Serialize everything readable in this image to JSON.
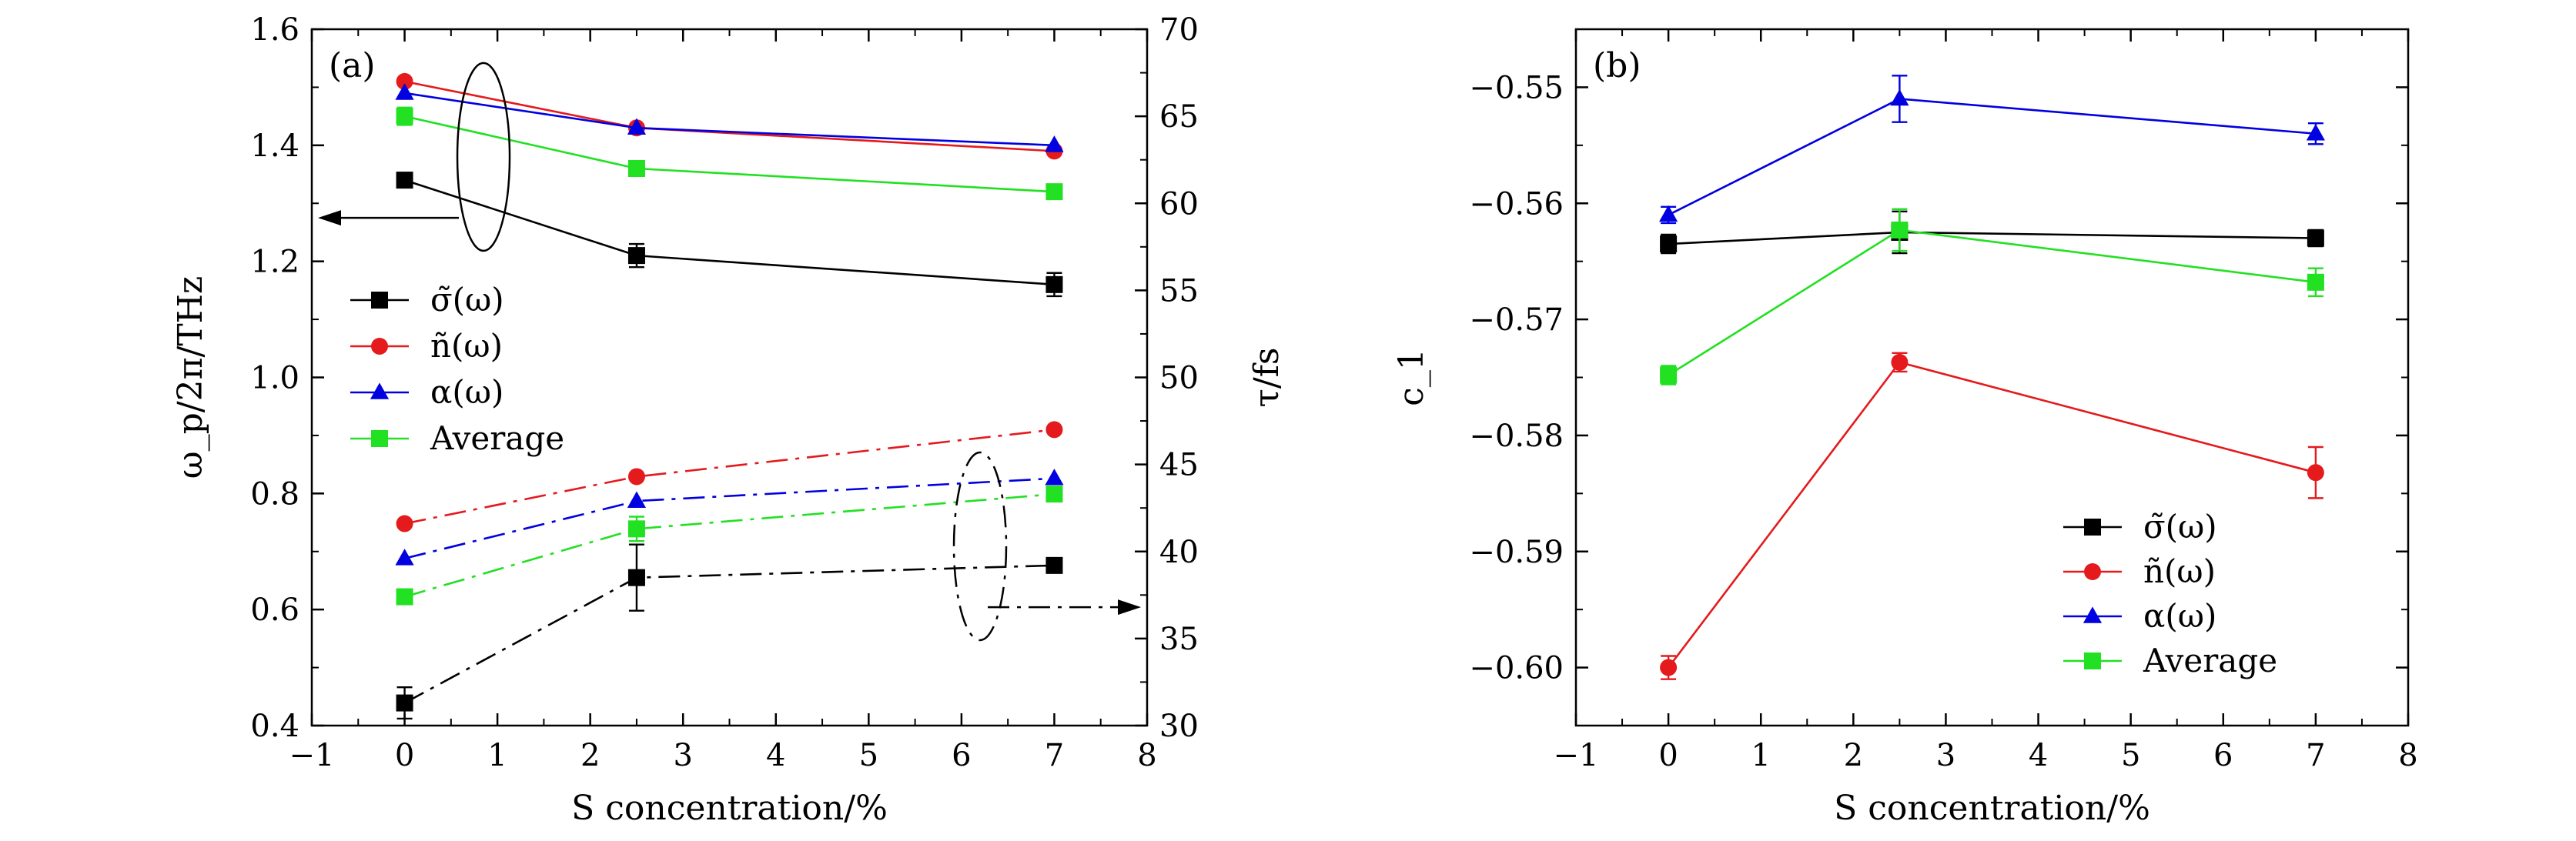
{
  "chart_data": [
    {
      "panel_label": "(a)",
      "type": "line",
      "xlabel": "S concentration/%",
      "ylabel": "ω_p/2π/THz",
      "y2label": "τ/fs",
      "xlim": [
        -1,
        8
      ],
      "ylim": [
        0.4,
        1.6
      ],
      "y2lim": [
        30,
        70
      ],
      "xticks": [
        "−1",
        "0",
        "1",
        "2",
        "3",
        "4",
        "5",
        "6",
        "7",
        "8"
      ],
      "yticks": [
        "0.4",
        "0.6",
        "0.8",
        "1.0",
        "1.2",
        "1.4",
        "1.6"
      ],
      "y2ticks": [
        "30",
        "35",
        "40",
        "45",
        "50",
        "55",
        "60",
        "65",
        "70"
      ],
      "x": [
        0,
        2.5,
        7
      ],
      "legend": {
        "placement": "middle-left",
        "entries": [
          {
            "text": "σ̃(ω)",
            "color": "#000000",
            "marker": "square"
          },
          {
            "text": "ñ(ω)",
            "color": "#e41a1c",
            "marker": "circle"
          },
          {
            "text": "α(ω)",
            "color": "#0000e0",
            "marker": "triangle"
          },
          {
            "text": "Average",
            "color": "#22e022",
            "marker": "square"
          }
        ]
      },
      "series": [
        {
          "axis": "left",
          "style": "solid",
          "color": "#000000",
          "marker": "square",
          "values": [
            1.34,
            1.21,
            1.16
          ],
          "errors": [
            0,
            0.02,
            0.02
          ]
        },
        {
          "axis": "left",
          "style": "solid",
          "color": "#e41a1c",
          "marker": "circle",
          "values": [
            1.51,
            1.43,
            1.39
          ],
          "errors": [
            0,
            0,
            0
          ]
        },
        {
          "axis": "left",
          "style": "solid",
          "color": "#0000e0",
          "marker": "triangle",
          "values": [
            1.49,
            1.43,
            1.4
          ],
          "errors": [
            0,
            0,
            0
          ]
        },
        {
          "axis": "left",
          "style": "solid",
          "color": "#22e022",
          "marker": "square",
          "values": [
            1.45,
            1.36,
            1.32
          ],
          "errors": [
            0.015,
            0,
            0
          ]
        },
        {
          "axis": "right",
          "style": "dashdot",
          "color": "#000000",
          "marker": "square",
          "values": [
            31.3,
            38.5,
            39.2
          ],
          "errors": [
            0.9,
            1.9,
            0
          ]
        },
        {
          "axis": "right",
          "style": "dashdot",
          "color": "#e41a1c",
          "marker": "circle",
          "values": [
            41.6,
            44.3,
            47.0
          ],
          "errors": [
            0,
            0,
            0
          ]
        },
        {
          "axis": "right",
          "style": "dashdot",
          "color": "#0000e0",
          "marker": "triangle",
          "values": [
            39.6,
            42.9,
            44.2
          ],
          "errors": [
            0,
            0,
            0
          ]
        },
        {
          "axis": "right",
          "style": "dashdot",
          "color": "#22e022",
          "marker": "square",
          "values": [
            37.4,
            41.3,
            43.3
          ],
          "errors": [
            0,
            0.7,
            0
          ]
        }
      ]
    },
    {
      "panel_label": "(b)",
      "type": "line",
      "xlabel": "S concentration/%",
      "ylabel": "c_1",
      "xlim": [
        -1,
        8
      ],
      "ylim": [
        -0.605,
        -0.545
      ],
      "xticks": [
        "−1",
        "0",
        "1",
        "2",
        "3",
        "4",
        "5",
        "6",
        "7",
        "8"
      ],
      "yticks": [
        "−0.60",
        "−0.59",
        "−0.58",
        "−0.57",
        "−0.56",
        "−0.55"
      ],
      "x": [
        0,
        2.5,
        7
      ],
      "legend": {
        "placement": "bottom-right",
        "entries": [
          {
            "text": "σ̃(ω)",
            "color": "#000000",
            "marker": "square"
          },
          {
            "text": "ñ(ω)",
            "color": "#e41a1c",
            "marker": "circle"
          },
          {
            "text": "α(ω)",
            "color": "#0000e0",
            "marker": "triangle"
          },
          {
            "text": "Average",
            "color": "#22e022",
            "marker": "square"
          }
        ]
      },
      "series": [
        {
          "color": "#000000",
          "marker": "square",
          "values": [
            -0.5635,
            -0.5625,
            -0.563
          ],
          "errors": [
            0.0008,
            0.0018,
            0.0007
          ]
        },
        {
          "color": "#e41a1c",
          "marker": "circle",
          "values": [
            -0.6,
            -0.5737,
            -0.5832
          ],
          "errors": [
            0.001,
            0.0008,
            0.0022
          ]
        },
        {
          "color": "#0000e0",
          "marker": "triangle",
          "values": [
            -0.561,
            -0.551,
            -0.554
          ],
          "errors": [
            0.0007,
            0.002,
            0.0009
          ]
        },
        {
          "color": "#22e022",
          "marker": "square",
          "values": [
            -0.5748,
            -0.5623,
            -0.5668
          ],
          "errors": [
            0.0008,
            0.0018,
            0.0012
          ]
        }
      ]
    }
  ]
}
